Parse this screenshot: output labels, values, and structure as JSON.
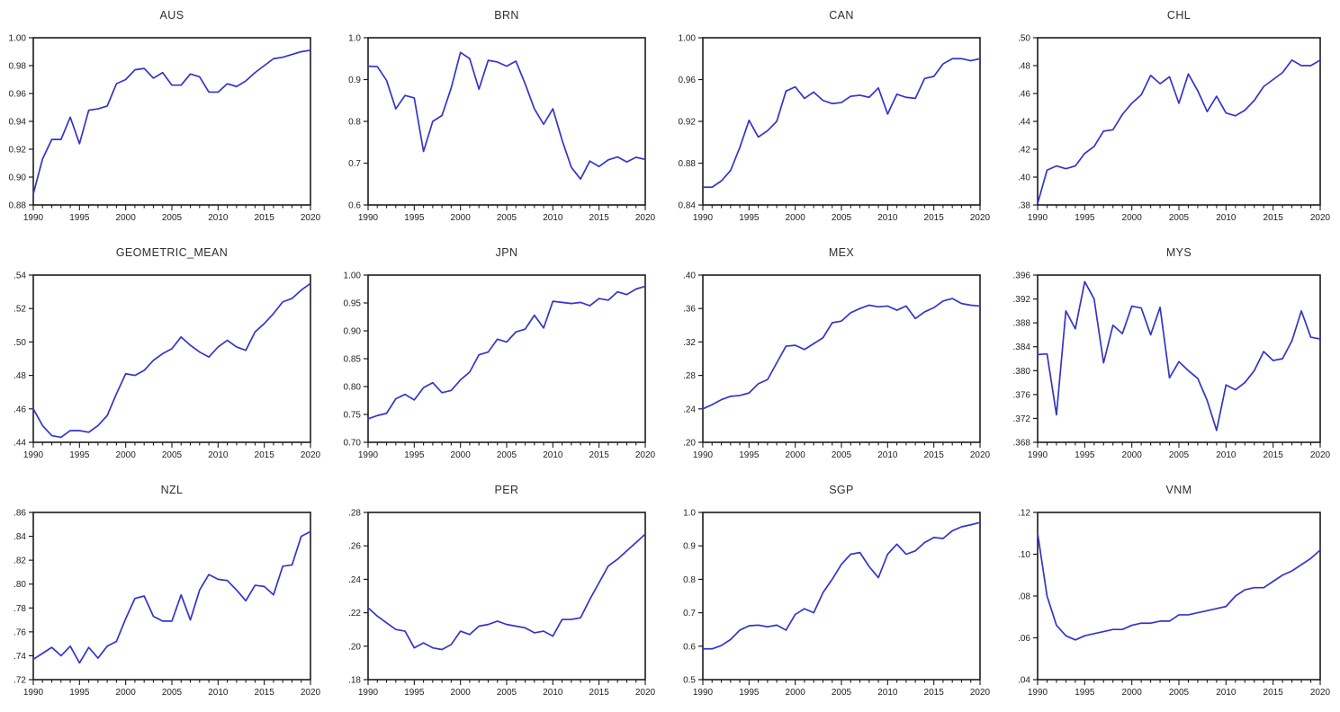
{
  "page": {
    "background": "#ffffff",
    "description": "Grid of 12 annual time-series line charts, 1990-2020"
  },
  "styles": {
    "line_color": "#3434cc",
    "frame_color": "#1c1c1c",
    "tick_color": "#1c1c1c",
    "label_color": "#1f1f1f",
    "title_color": "#2e2e2e"
  },
  "x_axis": {
    "start": 1990,
    "end": 2020,
    "step": 1,
    "tick_labels": [
      1990,
      1995,
      2000,
      2005,
      2010,
      2015,
      2020
    ],
    "minor_ticks_every": 1,
    "major_ticks_every": 5
  },
  "chart_data": [
    {
      "type": "line",
      "title": "AUS",
      "grid": false,
      "legend": false,
      "x_start": 1990,
      "x_end": 2020,
      "x_step": 1,
      "ylim": [
        0.88,
        1.0
      ],
      "y_step": 0.02,
      "y_format": "dec2",
      "values": [
        0.888,
        0.913,
        0.927,
        0.927,
        0.943,
        0.924,
        0.948,
        0.949,
        0.951,
        0.967,
        0.97,
        0.977,
        0.978,
        0.971,
        0.975,
        0.966,
        0.966,
        0.974,
        0.972,
        0.961,
        0.961,
        0.967,
        0.965,
        0.969,
        0.975,
        0.98,
        0.985,
        0.986,
        0.988,
        0.99,
        0.991
      ]
    },
    {
      "type": "line",
      "title": "BRN",
      "grid": false,
      "legend": false,
      "x_start": 1990,
      "x_end": 2020,
      "x_step": 1,
      "ylim": [
        0.6,
        1.0
      ],
      "y_step": 0.1,
      "y_format": "dec1",
      "values": [
        0.932,
        0.931,
        0.898,
        0.83,
        0.862,
        0.856,
        0.728,
        0.8,
        0.814,
        0.88,
        0.965,
        0.95,
        0.877,
        0.946,
        0.942,
        0.932,
        0.944,
        0.89,
        0.83,
        0.793,
        0.83,
        0.755,
        0.69,
        0.662,
        0.705,
        0.692,
        0.708,
        0.715,
        0.703,
        0.714,
        0.709
      ]
    },
    {
      "type": "line",
      "title": "CAN",
      "grid": false,
      "legend": false,
      "x_start": 1990,
      "x_end": 2020,
      "x_step": 1,
      "ylim": [
        0.84,
        1.0
      ],
      "y_step": 0.04,
      "y_format": "dec2",
      "values": [
        0.857,
        0.857,
        0.863,
        0.873,
        0.895,
        0.921,
        0.905,
        0.911,
        0.92,
        0.949,
        0.953,
        0.942,
        0.948,
        0.94,
        0.937,
        0.938,
        0.944,
        0.945,
        0.943,
        0.952,
        0.927,
        0.946,
        0.943,
        0.942,
        0.961,
        0.963,
        0.975,
        0.98,
        0.98,
        0.978,
        0.98
      ]
    },
    {
      "type": "line",
      "title": "CHL",
      "grid": false,
      "legend": false,
      "x_start": 1990,
      "x_end": 2020,
      "x_step": 1,
      "ylim": [
        0.38,
        0.5
      ],
      "y_step": 0.02,
      "y_format": "dot2",
      "values": [
        0.381,
        0.405,
        0.408,
        0.406,
        0.408,
        0.417,
        0.422,
        0.433,
        0.434,
        0.445,
        0.453,
        0.459,
        0.473,
        0.467,
        0.472,
        0.453,
        0.474,
        0.462,
        0.447,
        0.458,
        0.446,
        0.444,
        0.448,
        0.455,
        0.465,
        0.47,
        0.475,
        0.484,
        0.48,
        0.48,
        0.484
      ]
    },
    {
      "type": "line",
      "title": "GEOMETRIC_MEAN",
      "grid": false,
      "legend": false,
      "x_start": 1990,
      "x_end": 2020,
      "x_step": 1,
      "ylim": [
        0.44,
        0.54
      ],
      "y_step": 0.02,
      "y_format": "dot2",
      "values": [
        0.46,
        0.45,
        0.444,
        0.443,
        0.447,
        0.447,
        0.446,
        0.45,
        0.456,
        0.469,
        0.481,
        0.48,
        0.483,
        0.489,
        0.493,
        0.496,
        0.503,
        0.498,
        0.494,
        0.491,
        0.497,
        0.501,
        0.497,
        0.495,
        0.506,
        0.511,
        0.517,
        0.524,
        0.526,
        0.531,
        0.535
      ]
    },
    {
      "type": "line",
      "title": "JPN",
      "grid": false,
      "legend": false,
      "x_start": 1990,
      "x_end": 2020,
      "x_step": 1,
      "ylim": [
        0.7,
        1.0
      ],
      "y_step": 0.05,
      "y_format": "dec2",
      "values": [
        0.742,
        0.748,
        0.752,
        0.778,
        0.786,
        0.776,
        0.798,
        0.807,
        0.789,
        0.793,
        0.812,
        0.826,
        0.857,
        0.862,
        0.885,
        0.88,
        0.898,
        0.903,
        0.928,
        0.905,
        0.953,
        0.951,
        0.949,
        0.951,
        0.945,
        0.958,
        0.955,
        0.97,
        0.965,
        0.975,
        0.98
      ]
    },
    {
      "type": "line",
      "title": "MEX",
      "grid": false,
      "legend": false,
      "x_start": 1990,
      "x_end": 2020,
      "x_step": 1,
      "ylim": [
        0.2,
        0.4
      ],
      "y_step": 0.04,
      "y_format": "dot2",
      "values": [
        0.24,
        0.245,
        0.251,
        0.255,
        0.256,
        0.259,
        0.27,
        0.275,
        0.295,
        0.315,
        0.316,
        0.311,
        0.318,
        0.325,
        0.343,
        0.345,
        0.355,
        0.36,
        0.364,
        0.362,
        0.363,
        0.358,
        0.363,
        0.348,
        0.356,
        0.361,
        0.369,
        0.372,
        0.366,
        0.364,
        0.363
      ]
    },
    {
      "type": "line",
      "title": "MYS",
      "grid": false,
      "legend": false,
      "x_start": 1990,
      "x_end": 2020,
      "x_step": 1,
      "ylim": [
        0.368,
        0.396
      ],
      "y_step": 0.004,
      "y_format": "dot3",
      "values": [
        0.3827,
        0.3828,
        0.3726,
        0.39,
        0.387,
        0.3949,
        0.392,
        0.3813,
        0.3876,
        0.3862,
        0.3908,
        0.3905,
        0.386,
        0.3906,
        0.3788,
        0.3815,
        0.38,
        0.3787,
        0.375,
        0.37,
        0.3776,
        0.3768,
        0.378,
        0.38,
        0.3832,
        0.3817,
        0.382,
        0.385,
        0.39,
        0.3856,
        0.3853
      ]
    },
    {
      "type": "line",
      "title": "NZL",
      "grid": false,
      "legend": false,
      "x_start": 1990,
      "x_end": 2020,
      "x_step": 1,
      "ylim": [
        0.72,
        0.86
      ],
      "y_step": 0.02,
      "y_format": "dot2",
      "values": [
        0.737,
        0.742,
        0.747,
        0.74,
        0.748,
        0.734,
        0.747,
        0.738,
        0.748,
        0.752,
        0.771,
        0.788,
        0.79,
        0.773,
        0.769,
        0.769,
        0.791,
        0.77,
        0.795,
        0.808,
        0.804,
        0.803,
        0.795,
        0.786,
        0.799,
        0.798,
        0.791,
        0.815,
        0.816,
        0.84,
        0.844
      ]
    },
    {
      "type": "line",
      "title": "PER",
      "grid": false,
      "legend": false,
      "x_start": 1990,
      "x_end": 2020,
      "x_step": 1,
      "ylim": [
        0.18,
        0.28
      ],
      "y_step": 0.02,
      "y_format": "dot2",
      "values": [
        0.223,
        0.218,
        0.214,
        0.21,
        0.209,
        0.199,
        0.202,
        0.199,
        0.198,
        0.201,
        0.209,
        0.207,
        0.212,
        0.213,
        0.215,
        0.213,
        0.212,
        0.211,
        0.208,
        0.209,
        0.206,
        0.216,
        0.216,
        0.217,
        0.228,
        0.238,
        0.248,
        0.252,
        0.257,
        0.262,
        0.267
      ]
    },
    {
      "type": "line",
      "title": "SGP",
      "grid": false,
      "legend": false,
      "x_start": 1990,
      "x_end": 2020,
      "x_step": 1,
      "ylim": [
        0.5,
        1.0
      ],
      "y_step": 0.1,
      "y_format": "dec1",
      "values": [
        0.592,
        0.592,
        0.602,
        0.62,
        0.648,
        0.661,
        0.663,
        0.658,
        0.663,
        0.648,
        0.695,
        0.712,
        0.7,
        0.76,
        0.8,
        0.845,
        0.875,
        0.88,
        0.838,
        0.805,
        0.875,
        0.905,
        0.875,
        0.885,
        0.91,
        0.925,
        0.922,
        0.945,
        0.957,
        0.963,
        0.97
      ]
    },
    {
      "type": "line",
      "title": "VNM",
      "grid": false,
      "legend": false,
      "x_start": 1990,
      "x_end": 2020,
      "x_step": 1,
      "ylim": [
        0.04,
        0.12
      ],
      "y_step": 0.02,
      "y_format": "dot2",
      "values": [
        0.11,
        0.08,
        0.066,
        0.061,
        0.059,
        0.061,
        0.062,
        0.063,
        0.064,
        0.064,
        0.066,
        0.067,
        0.067,
        0.068,
        0.068,
        0.071,
        0.071,
        0.072,
        0.073,
        0.074,
        0.075,
        0.08,
        0.083,
        0.084,
        0.084,
        0.087,
        0.09,
        0.092,
        0.095,
        0.098,
        0.102
      ]
    }
  ]
}
